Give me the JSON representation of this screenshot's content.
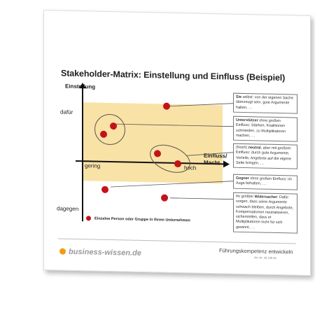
{
  "document": {
    "title": "Stakeholder-Matrix: Einstellung und Einfluss (Beispiel)",
    "y_axis": {
      "label": "Einstellung",
      "top": "dafür",
      "bottom": "dagegen"
    },
    "x_axis": {
      "label_line1": "Einfluss/",
      "label_line2": "Macht",
      "left": "gering",
      "right": "hoch"
    },
    "notes": [
      {
        "bold": "Sie",
        "text": " selbst: von der eigenen Sache überzeugt sein, gute Argumente haben, …"
      },
      {
        "bold": "Unterstützer",
        "text": " ohne großen Einfluss: Stärken, Koalitionen schmieden, zu Multiplikatoren machen, …"
      },
      {
        "pre": "(Noch) ",
        "bold": "neutral",
        "text": ", aber mit großem Einfluss: durch gute Argumente, Vorteile, Angebote auf die eigene Seite bringen, …"
      },
      {
        "bold": "Gegner",
        "text": " ohne großen Einfluss: im Auge behalten, …"
      },
      {
        "pre": "Ihr größter ",
        "bold": "Widersacher",
        "text": ": Dafür sorgen, dass seine Argumente schwach bleiben, durch Angebote, Kompensationen neutralisieren, sicherstellen, dass er Multiplikatoren nicht für sich gewinnt, …"
      }
    ],
    "legend": "Einzelne Person oder Gruppe in Ihrem Unternehmen",
    "footer": {
      "brand": "business-wissen.de",
      "tagline": "Führungskompetenz entwickeln",
      "article_number": "Art.-Nr. 35 105 06"
    },
    "colors": {
      "dot": "#c4121a",
      "matrix": "#f9e2a5",
      "brand_dot": "#f39c12"
    }
  }
}
